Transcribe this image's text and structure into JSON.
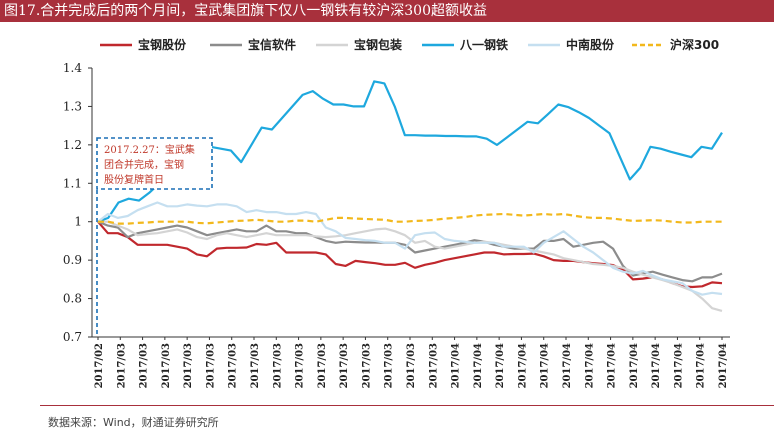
{
  "header": {
    "title": "图17.合并完成后的两个月间，宝武集团旗下仅八一钢铁有较沪深300超额收益"
  },
  "footer": {
    "source": "数据来源：Wind，财通证券研究所"
  },
  "chart_data": {
    "type": "line",
    "title": "图17.合并完成后的两个月间，宝武集团旗下仅八一钢铁有较沪深300超额收益",
    "xlabel": "",
    "ylabel": "",
    "ylim": [
      0.7,
      1.4
    ],
    "yticks": [
      "1.4",
      "1.3",
      "1.2",
      "1.1",
      "1",
      "0.9",
      "0.8",
      "0.7"
    ],
    "ytick_values": [
      1.4,
      1.3,
      1.2,
      1.1,
      1.0,
      0.9,
      0.8,
      0.7
    ],
    "xtick_labels": [
      "2017/02",
      "2017/03",
      "2017/03",
      "2017/03",
      "2017/03",
      "2017/03",
      "2017/03",
      "2017/03",
      "2017/03",
      "2017/03",
      "2017/03",
      "2017/03",
      "2017/03",
      "2017/03",
      "2017/03",
      "2017/03",
      "2017/04",
      "2017/04",
      "2017/04",
      "2017/04",
      "2017/04",
      "2017/04",
      "2017/04",
      "2017/04",
      "2017/04",
      "2017/04",
      "2017/04",
      "2017/04",
      "2017/04"
    ],
    "legend": {
      "position": "top"
    },
    "annotation": {
      "lines": [
        "2017.2.27：宝武集",
        "团合并完成，宝钢",
        "股份复牌首日"
      ]
    },
    "series": [
      {
        "name": "宝钢股份",
        "color": "#c0282d",
        "dash": "solid",
        "values": [
          1.0,
          0.97,
          0.97,
          0.96,
          0.94,
          0.94,
          0.94,
          0.94,
          0.935,
          0.93,
          0.915,
          0.91,
          0.93,
          0.932,
          0.932,
          0.933,
          0.942,
          0.94,
          0.945,
          0.92,
          0.92,
          0.92,
          0.92,
          0.915,
          0.89,
          0.885,
          0.898,
          0.895,
          0.892,
          0.888,
          0.888,
          0.893,
          0.88,
          0.888,
          0.893,
          0.9,
          0.905,
          0.91,
          0.915,
          0.92,
          0.92,
          0.915,
          0.916,
          0.916,
          0.917,
          0.91,
          0.9,
          0.898,
          0.898,
          0.895,
          0.892,
          0.89,
          0.887,
          0.876,
          0.85,
          0.852,
          0.856,
          0.85,
          0.84,
          0.832,
          0.83,
          0.832,
          0.842,
          0.84
        ]
      },
      {
        "name": "宝信软件",
        "color": "#8c8c8c",
        "dash": "solid",
        "values": [
          1.0,
          0.99,
          0.985,
          0.96,
          0.97,
          0.975,
          0.98,
          0.985,
          0.99,
          0.985,
          0.975,
          0.965,
          0.97,
          0.975,
          0.98,
          0.975,
          0.975,
          0.99,
          0.975,
          0.975,
          0.97,
          0.97,
          0.96,
          0.95,
          0.945,
          0.948,
          0.947,
          0.946,
          0.946,
          0.945,
          0.945,
          0.94,
          0.92,
          0.925,
          0.93,
          0.935,
          0.94,
          0.945,
          0.952,
          0.948,
          0.94,
          0.935,
          0.93,
          0.93,
          0.93,
          0.95,
          0.95,
          0.955,
          0.935,
          0.94,
          0.945,
          0.948,
          0.93,
          0.885,
          0.86,
          0.865,
          0.87,
          0.862,
          0.855,
          0.848,
          0.845,
          0.855,
          0.855,
          0.865
        ]
      },
      {
        "name": "宝钢包装",
        "color": "#d4d4d4",
        "dash": "solid",
        "values": [
          1.0,
          1.0,
          0.99,
          0.98,
          0.965,
          0.968,
          0.97,
          0.975,
          0.98,
          0.972,
          0.96,
          0.955,
          0.965,
          0.97,
          0.965,
          0.96,
          0.965,
          0.97,
          0.965,
          0.965,
          0.965,
          0.965,
          0.962,
          0.96,
          0.962,
          0.965,
          0.97,
          0.975,
          0.98,
          0.982,
          0.975,
          0.965,
          0.945,
          0.95,
          0.935,
          0.93,
          0.935,
          0.94,
          0.945,
          0.948,
          0.945,
          0.94,
          0.935,
          0.93,
          0.925,
          0.92,
          0.915,
          0.905,
          0.9,
          0.895,
          0.89,
          0.888,
          0.885,
          0.88,
          0.87,
          0.862,
          0.855,
          0.848,
          0.84,
          0.83,
          0.82,
          0.8,
          0.775,
          0.768
        ]
      },
      {
        "name": "八一钢铁",
        "color": "#1ea8de",
        "dash": "solid",
        "values": [
          1.0,
          1.01,
          1.05,
          1.06,
          1.055,
          1.075,
          1.1,
          1.13,
          1.15,
          1.195,
          1.2,
          1.195,
          1.19,
          1.185,
          1.155,
          1.2,
          1.245,
          1.24,
          1.27,
          1.3,
          1.33,
          1.34,
          1.32,
          1.305,
          1.305,
          1.3,
          1.3,
          1.365,
          1.36,
          1.3,
          1.225,
          1.225,
          1.224,
          1.224,
          1.223,
          1.223,
          1.222,
          1.222,
          1.216,
          1.2,
          1.22,
          1.24,
          1.26,
          1.256,
          1.28,
          1.305,
          1.298,
          1.285,
          1.27,
          1.25,
          1.23,
          1.17,
          1.11,
          1.14,
          1.195,
          1.19,
          1.182,
          1.175,
          1.168,
          1.195,
          1.19,
          1.232
        ]
      },
      {
        "name": "中南股份",
        "color": "#c5dff0",
        "dash": "solid",
        "values": [
          1.0,
          1.02,
          1.01,
          1.015,
          1.03,
          1.04,
          1.05,
          1.04,
          1.04,
          1.045,
          1.042,
          1.04,
          1.045,
          1.045,
          1.04,
          1.025,
          1.03,
          1.025,
          1.025,
          1.02,
          1.02,
          1.025,
          1.02,
          0.985,
          0.975,
          0.958,
          0.955,
          0.952,
          0.95,
          0.945,
          0.945,
          0.93,
          0.965,
          0.97,
          0.972,
          0.955,
          0.95,
          0.948,
          0.945,
          0.945,
          0.945,
          0.935,
          0.935,
          0.935,
          0.92,
          0.945,
          0.96,
          0.975,
          0.955,
          0.935,
          0.92,
          0.9,
          0.88,
          0.87,
          0.865,
          0.872,
          0.86,
          0.85,
          0.845,
          0.84,
          0.82,
          0.81,
          0.815,
          0.812
        ]
      },
      {
        "name": "沪深300",
        "color": "#f2b81c",
        "dash": "dashed",
        "values": [
          1.0,
          1.0,
          0.995,
          0.995,
          0.997,
          0.998,
          1.0,
          1.0,
          1.0,
          1.0,
          0.997,
          0.996,
          0.998,
          1.0,
          1.002,
          1.003,
          1.005,
          1.003,
          1.0,
          1.0,
          1.003,
          1.003,
          1.0,
          1.005,
          1.01,
          1.01,
          1.008,
          1.007,
          1.006,
          1.005,
          1.0,
          1.0,
          1.002,
          1.003,
          1.005,
          1.008,
          1.01,
          1.012,
          1.016,
          1.018,
          1.019,
          1.02,
          1.018,
          1.016,
          1.018,
          1.02,
          1.018,
          1.02,
          1.016,
          1.012,
          1.01,
          1.01,
          1.008,
          1.005,
          1.002,
          1.003,
          1.004,
          1.003,
          1.0,
          0.998,
          0.998,
          1.0,
          1.0,
          1.0
        ]
      }
    ]
  }
}
